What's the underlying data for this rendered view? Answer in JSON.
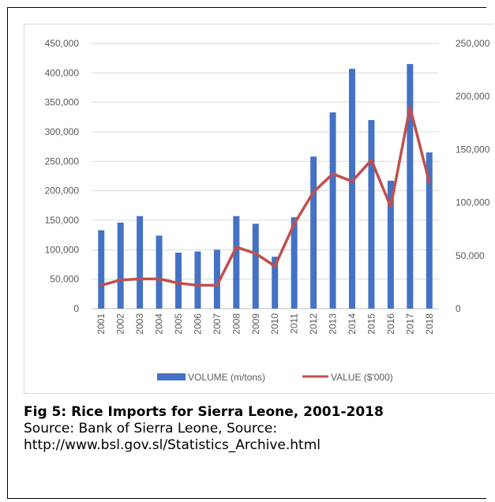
{
  "caption": {
    "title": "Fig 5: Rice Imports for Sierra Leone, 2001-2018",
    "source_line": "Source: Bank of Sierra Leone, Source:",
    "url_line": "http://www.bsl.gov.sl/Statistics_Archive.html"
  },
  "chart_data": {
    "type": "bar",
    "title": "",
    "categories": [
      "2001",
      "2002",
      "2003",
      "2004",
      "2005",
      "2006",
      "2007",
      "2008",
      "2009",
      "2010",
      "2011",
      "2012",
      "2013",
      "2014",
      "2015",
      "2016",
      "2017",
      "2018"
    ],
    "series": [
      {
        "name": "VOLUME (m/tons)",
        "type": "bar",
        "axis": "left",
        "color": "#4472c4",
        "values": [
          133000,
          146000,
          157000,
          124000,
          95000,
          97000,
          100000,
          157000,
          144000,
          88000,
          155000,
          258000,
          333000,
          407000,
          320000,
          217000,
          415000,
          265000
        ]
      },
      {
        "name": "VALUE ($'000)",
        "type": "line",
        "axis": "right",
        "color": "#c0504d",
        "values": [
          22000,
          27000,
          28000,
          28000,
          24000,
          22000,
          22000,
          58000,
          52000,
          40000,
          80000,
          110000,
          127000,
          120000,
          140000,
          96000,
          190000,
          119000
        ]
      }
    ],
    "left_axis": {
      "min": 0,
      "max": 450000,
      "ticks": [
        "0",
        "50,000",
        "100,000",
        "150,000",
        "200,000",
        "250,000",
        "300,000",
        "350,000",
        "400,000",
        "450,000"
      ]
    },
    "right_axis": {
      "min": 0,
      "max": 250000,
      "ticks": [
        "0",
        "50,000",
        "100,000",
        "150,000",
        "200,000",
        "250,000"
      ]
    },
    "grid": true,
    "legend_position": "bottom"
  }
}
